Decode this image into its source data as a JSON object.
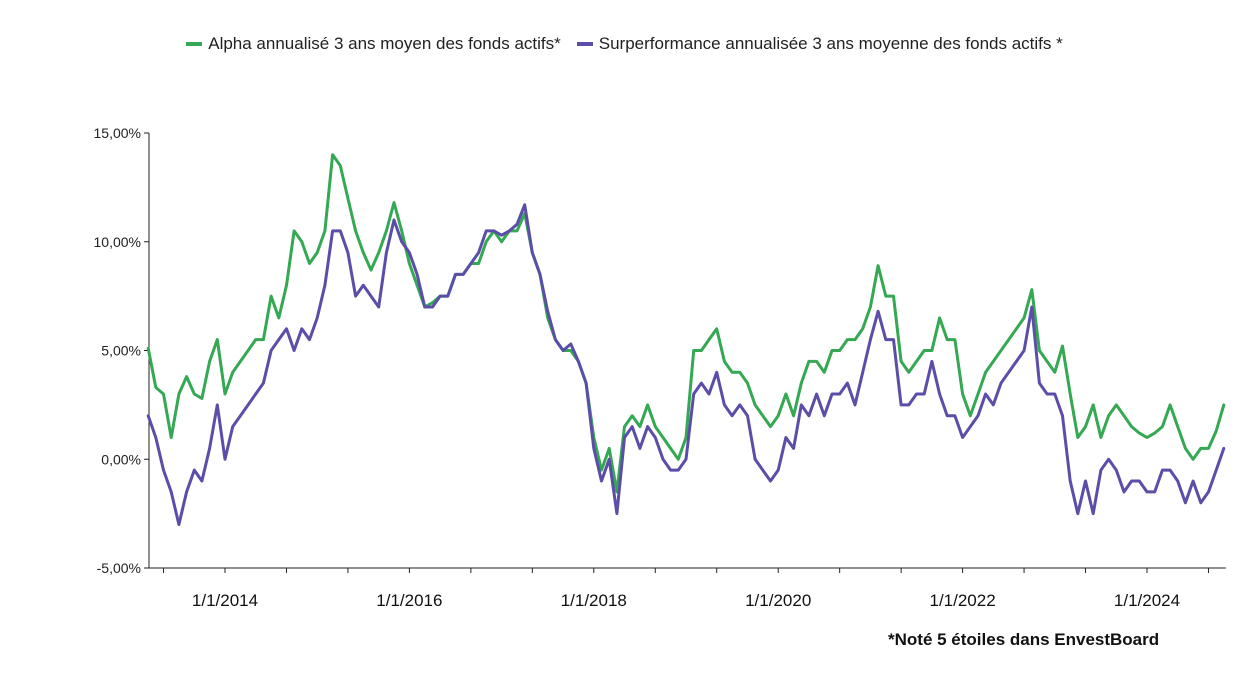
{
  "chart_data": {
    "type": "line",
    "title": "",
    "xlabel": "",
    "ylabel": "",
    "ylim": [
      -5,
      15
    ],
    "y_ticks": [
      "-5,00%",
      "0,00%",
      "5,00%",
      "10,00%",
      "15,00%"
    ],
    "y_tick_values": [
      -5,
      0,
      5,
      10,
      15
    ],
    "x_ticks": [
      "1/1/2014",
      "1/1/2016",
      "1/1/2018",
      "1/1/2020",
      "1/1/2022",
      "1/1/2024"
    ],
    "x_tick_dates": [
      "2014-01",
      "2016-01",
      "2018-01",
      "2020-01",
      "2022-01",
      "2024-01"
    ],
    "xlim": [
      "2013-03",
      "2024-11"
    ],
    "grid": false,
    "legend_position": "top",
    "x": [
      "2013-03",
      "2013-04",
      "2013-05",
      "2013-06",
      "2013-07",
      "2013-08",
      "2013-09",
      "2013-10",
      "2013-11",
      "2013-12",
      "2014-01",
      "2014-02",
      "2014-03",
      "2014-04",
      "2014-05",
      "2014-06",
      "2014-07",
      "2014-08",
      "2014-09",
      "2014-10",
      "2014-11",
      "2014-12",
      "2015-01",
      "2015-02",
      "2015-03",
      "2015-04",
      "2015-05",
      "2015-06",
      "2015-07",
      "2015-08",
      "2015-09",
      "2015-10",
      "2015-11",
      "2015-12",
      "2016-01",
      "2016-02",
      "2016-03",
      "2016-04",
      "2016-05",
      "2016-06",
      "2016-07",
      "2016-08",
      "2016-09",
      "2016-10",
      "2016-11",
      "2016-12",
      "2017-01",
      "2017-02",
      "2017-03",
      "2017-04",
      "2017-05",
      "2017-06",
      "2017-07",
      "2017-08",
      "2017-09",
      "2017-10",
      "2017-11",
      "2017-12",
      "2018-01",
      "2018-02",
      "2018-03",
      "2018-04",
      "2018-05",
      "2018-06",
      "2018-07",
      "2018-08",
      "2018-09",
      "2018-10",
      "2018-11",
      "2018-12",
      "2019-01",
      "2019-02",
      "2019-03",
      "2019-04",
      "2019-05",
      "2019-06",
      "2019-07",
      "2019-08",
      "2019-09",
      "2019-10",
      "2019-11",
      "2019-12",
      "2020-01",
      "2020-02",
      "2020-03",
      "2020-04",
      "2020-05",
      "2020-06",
      "2020-07",
      "2020-08",
      "2020-09",
      "2020-10",
      "2020-11",
      "2020-12",
      "2021-01",
      "2021-02",
      "2021-03",
      "2021-04",
      "2021-05",
      "2021-06",
      "2021-07",
      "2021-08",
      "2021-09",
      "2021-10",
      "2021-11",
      "2021-12",
      "2022-01",
      "2022-02",
      "2022-03",
      "2022-04",
      "2022-05",
      "2022-06",
      "2022-07",
      "2022-08",
      "2022-09",
      "2022-10",
      "2022-11",
      "2022-12",
      "2023-01",
      "2023-02",
      "2023-03",
      "2023-04",
      "2023-05",
      "2023-06",
      "2023-07",
      "2023-08",
      "2023-09",
      "2023-10",
      "2023-11",
      "2023-12",
      "2024-01",
      "2024-02",
      "2024-03",
      "2024-04",
      "2024-05",
      "2024-06",
      "2024-07",
      "2024-08",
      "2024-09",
      "2024-10",
      "2024-11"
    ],
    "series": [
      {
        "name": "Alpha annualisé 3 ans moyen des fonds actifs*",
        "color": "#34a853",
        "values": [
          5.1,
          3.3,
          3.0,
          1.0,
          3.0,
          3.8,
          3.0,
          2.8,
          4.5,
          5.5,
          3.0,
          4.0,
          4.5,
          5.0,
          5.5,
          5.5,
          7.5,
          6.5,
          8.0,
          10.5,
          10.0,
          9.0,
          9.5,
          10.5,
          14.0,
          13.5,
          12.0,
          10.5,
          9.5,
          8.7,
          9.5,
          10.5,
          11.8,
          10.5,
          9.0,
          8.0,
          7.0,
          7.2,
          7.5,
          7.5,
          8.5,
          8.5,
          9.0,
          9.0,
          10.0,
          10.5,
          10.0,
          10.5,
          10.5,
          11.3,
          9.5,
          8.5,
          6.5,
          5.5,
          5.0,
          5.0,
          4.5,
          3.5,
          1.0,
          -0.5,
          0.5,
          -1.5,
          1.5,
          2.0,
          1.5,
          2.5,
          1.5,
          1.0,
          0.5,
          0.0,
          1.0,
          5.0,
          5.0,
          5.5,
          6.0,
          4.5,
          4.0,
          4.0,
          3.5,
          2.5,
          2.0,
          1.5,
          2.0,
          3.0,
          2.0,
          3.5,
          4.5,
          4.5,
          4.0,
          5.0,
          5.0,
          5.5,
          5.5,
          6.0,
          7.0,
          8.9,
          7.5,
          7.5,
          4.5,
          4.0,
          4.5,
          5.0,
          5.0,
          6.5,
          5.5,
          5.5,
          3.0,
          2.0,
          3.0,
          4.0,
          4.5,
          5.0,
          5.5,
          6.0,
          6.5,
          7.8,
          5.0,
          4.5,
          4.0,
          5.2,
          3.0,
          1.0,
          1.5,
          2.5,
          1.0,
          2.0,
          2.5,
          2.0,
          1.5,
          1.2,
          1.0,
          1.2,
          1.5,
          2.5,
          1.5,
          0.5,
          0.0,
          0.5,
          0.5,
          1.3,
          2.5
        ]
      },
      {
        "name": "Surperformance annualisée 3 ans moyenne des fonds actifs *",
        "color": "#5b4ea8",
        "values": [
          2.0,
          1.0,
          -0.5,
          -1.5,
          -3.0,
          -1.5,
          -0.5,
          -1.0,
          0.5,
          2.5,
          0.0,
          1.5,
          2.0,
          2.5,
          3.0,
          3.5,
          5.0,
          5.5,
          6.0,
          5.0,
          6.0,
          5.5,
          6.5,
          8.0,
          10.5,
          10.5,
          9.5,
          7.5,
          8.0,
          7.5,
          7.0,
          9.5,
          11.0,
          10.0,
          9.5,
          8.5,
          7.0,
          7.0,
          7.5,
          7.5,
          8.5,
          8.5,
          9.0,
          9.5,
          10.5,
          10.5,
          10.3,
          10.5,
          10.8,
          11.7,
          9.5,
          8.5,
          6.8,
          5.5,
          5.0,
          5.3,
          4.5,
          3.5,
          0.5,
          -1.0,
          0.0,
          -2.5,
          1.0,
          1.5,
          0.5,
          1.5,
          1.0,
          0.0,
          -0.5,
          -0.5,
          0.0,
          3.0,
          3.5,
          3.0,
          4.0,
          2.5,
          2.0,
          2.5,
          2.0,
          0.0,
          -0.5,
          -1.0,
          -0.5,
          1.0,
          0.5,
          2.5,
          2.0,
          3.0,
          2.0,
          3.0,
          3.0,
          3.5,
          2.5,
          4.0,
          5.5,
          6.8,
          5.5,
          5.5,
          2.5,
          2.5,
          3.0,
          3.0,
          4.5,
          3.0,
          2.0,
          2.0,
          1.0,
          1.5,
          2.0,
          3.0,
          2.5,
          3.5,
          4.0,
          4.5,
          5.0,
          7.0,
          3.5,
          3.0,
          3.0,
          2.0,
          -1.0,
          -2.5,
          -1.0,
          -2.5,
          -0.5,
          0.0,
          -0.5,
          -1.5,
          -1.0,
          -1.0,
          -1.5,
          -1.5,
          -0.5,
          -0.5,
          -1.0,
          -2.0,
          -1.0,
          -2.0,
          -1.5,
          -0.5,
          0.5
        ]
      }
    ]
  },
  "footnote": "*Noté 5 étoiles dans EnvestBoard"
}
